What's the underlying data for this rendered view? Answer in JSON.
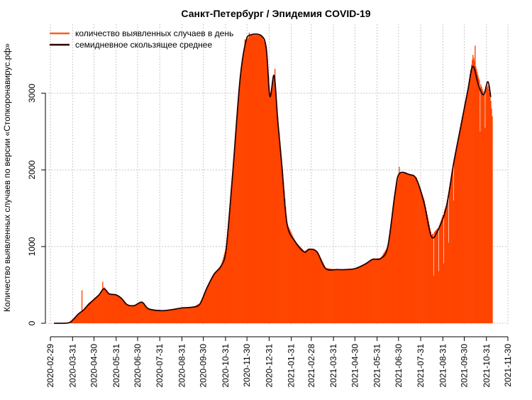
{
  "chart_data": {
    "type": "bar",
    "title": "Санкт-Петербург / Эпидемия COVID-19",
    "xlabel": "",
    "ylabel": "Количество выявленных случаев по версии «Стопкоронавирус.рф»",
    "x_range": [
      "2020-02-22",
      "2021-11-30"
    ],
    "ylim": [
      0,
      3900
    ],
    "y_ticks": [
      0,
      1000,
      2000,
      3000
    ],
    "x_ticks": [
      "2020-02-29",
      "2020-03-31",
      "2020-04-30",
      "2020-05-31",
      "2020-06-30",
      "2020-07-31",
      "2020-08-31",
      "2020-09-30",
      "2020-10-31",
      "2020-11-30",
      "2020-12-31",
      "2021-01-31",
      "2021-02-28",
      "2021-03-31",
      "2021-04-30",
      "2021-05-31",
      "2021-06-30",
      "2021-07-31",
      "2021-08-31",
      "2021-09-30",
      "2021-10-31",
      "2021-11-30"
    ],
    "grid": true,
    "legend_position": "top-left",
    "colors": {
      "daily": "#ff4500",
      "daily_legend": "#f26522",
      "average": "#2a0000"
    },
    "series": [
      {
        "name": "количество выявленных случаев в день",
        "kind": "daily",
        "anchors": [
          [
            "2020-03-05",
            0
          ],
          [
            "2020-03-25",
            5
          ],
          [
            "2020-04-01",
            60
          ],
          [
            "2020-04-08",
            130
          ],
          [
            "2020-04-15",
            180
          ],
          [
            "2020-04-22",
            260
          ],
          [
            "2020-04-30",
            320
          ],
          [
            "2020-05-07",
            380
          ],
          [
            "2020-05-14",
            470
          ],
          [
            "2020-05-21",
            390
          ],
          [
            "2020-05-31",
            370
          ],
          [
            "2020-06-08",
            320
          ],
          [
            "2020-06-15",
            240
          ],
          [
            "2020-06-25",
            230
          ],
          [
            "2020-07-06",
            280
          ],
          [
            "2020-07-15",
            190
          ],
          [
            "2020-07-31",
            165
          ],
          [
            "2020-08-15",
            175
          ],
          [
            "2020-08-31",
            200
          ],
          [
            "2020-09-15",
            210
          ],
          [
            "2020-09-25",
            260
          ],
          [
            "2020-10-05",
            470
          ],
          [
            "2020-10-15",
            650
          ],
          [
            "2020-10-25",
            760
          ],
          [
            "2020-11-01",
            1000
          ],
          [
            "2020-11-10",
            2000
          ],
          [
            "2020-11-20",
            3200
          ],
          [
            "2020-11-28",
            3680
          ],
          [
            "2020-12-05",
            3760
          ],
          [
            "2020-12-20",
            3760
          ],
          [
            "2020-12-27",
            3600
          ],
          [
            "2021-01-01",
            2970
          ],
          [
            "2021-01-07",
            3220
          ],
          [
            "2021-01-12",
            2700
          ],
          [
            "2021-01-18",
            2050
          ],
          [
            "2021-01-25",
            1300
          ],
          [
            "2021-02-05",
            1070
          ],
          [
            "2021-02-18",
            940
          ],
          [
            "2021-02-25",
            970
          ],
          [
            "2021-03-08",
            940
          ],
          [
            "2021-03-20",
            720
          ],
          [
            "2021-04-05",
            700
          ],
          [
            "2021-04-18",
            700
          ],
          [
            "2021-05-01",
            720
          ],
          [
            "2021-05-15",
            780
          ],
          [
            "2021-05-25",
            840
          ],
          [
            "2021-06-05",
            850
          ],
          [
            "2021-06-15",
            1000
          ],
          [
            "2021-06-25",
            1700
          ],
          [
            "2021-07-01",
            1960
          ],
          [
            "2021-07-15",
            1950
          ],
          [
            "2021-07-25",
            1900
          ],
          [
            "2021-08-05",
            1600
          ],
          [
            "2021-08-15",
            1150
          ],
          [
            "2021-08-25",
            1250
          ],
          [
            "2021-09-05",
            1550
          ],
          [
            "2021-09-15",
            2100
          ],
          [
            "2021-09-25",
            2600
          ],
          [
            "2021-10-05",
            3050
          ],
          [
            "2021-10-12",
            3500
          ],
          [
            "2021-10-20",
            3200
          ],
          [
            "2021-10-27",
            3000
          ],
          [
            "2021-11-02",
            3100
          ],
          [
            "2021-11-06",
            2900
          ],
          [
            "2021-11-08",
            2700
          ]
        ],
        "spikes": [
          [
            "2020-04-13",
            430
          ],
          [
            "2020-05-12",
            540
          ],
          [
            "2020-11-27",
            3700
          ],
          [
            "2020-12-03",
            3790
          ],
          [
            "2021-01-08",
            3320
          ],
          [
            "2021-01-13",
            2530
          ],
          [
            "2021-07-01",
            2040
          ],
          [
            "2021-10-15",
            3620
          ],
          [
            "2021-10-22",
            3450
          ]
        ],
        "dips": [
          [
            "2021-08-18",
            620
          ],
          [
            "2021-08-25",
            680
          ],
          [
            "2021-09-01",
            780
          ],
          [
            "2021-09-08",
            1050
          ],
          [
            "2021-09-15",
            1600
          ],
          [
            "2021-10-22",
            2500
          ],
          [
            "2021-10-29",
            2550
          ]
        ]
      },
      {
        "name": "семидневное скользящее среднее",
        "kind": "average",
        "points": [
          [
            "2020-03-05",
            0
          ],
          [
            "2020-03-25",
            5
          ],
          [
            "2020-04-01",
            50
          ],
          [
            "2020-04-08",
            120
          ],
          [
            "2020-04-15",
            170
          ],
          [
            "2020-04-22",
            240
          ],
          [
            "2020-04-30",
            310
          ],
          [
            "2020-05-07",
            370
          ],
          [
            "2020-05-14",
            450
          ],
          [
            "2020-05-21",
            385
          ],
          [
            "2020-05-31",
            370
          ],
          [
            "2020-06-08",
            320
          ],
          [
            "2020-06-15",
            245
          ],
          [
            "2020-06-25",
            230
          ],
          [
            "2020-07-06",
            275
          ],
          [
            "2020-07-15",
            190
          ],
          [
            "2020-07-31",
            165
          ],
          [
            "2020-08-15",
            175
          ],
          [
            "2020-08-31",
            200
          ],
          [
            "2020-09-15",
            210
          ],
          [
            "2020-09-25",
            250
          ],
          [
            "2020-10-05",
            460
          ],
          [
            "2020-10-15",
            640
          ],
          [
            "2020-10-25",
            750
          ],
          [
            "2020-11-01",
            980
          ],
          [
            "2020-11-10",
            1950
          ],
          [
            "2020-11-20",
            3150
          ],
          [
            "2020-11-28",
            3660
          ],
          [
            "2020-12-05",
            3760
          ],
          [
            "2020-12-20",
            3750
          ],
          [
            "2020-12-27",
            3580
          ],
          [
            "2021-01-01",
            2960
          ],
          [
            "2021-01-07",
            3230
          ],
          [
            "2021-01-12",
            2650
          ],
          [
            "2021-01-18",
            2030
          ],
          [
            "2021-01-25",
            1300
          ],
          [
            "2021-02-05",
            1070
          ],
          [
            "2021-02-18",
            930
          ],
          [
            "2021-02-25",
            965
          ],
          [
            "2021-03-08",
            930
          ],
          [
            "2021-03-20",
            715
          ],
          [
            "2021-04-05",
            700
          ],
          [
            "2021-04-18",
            700
          ],
          [
            "2021-05-01",
            715
          ],
          [
            "2021-05-15",
            775
          ],
          [
            "2021-05-25",
            835
          ],
          [
            "2021-06-05",
            845
          ],
          [
            "2021-06-15",
            1000
          ],
          [
            "2021-06-25",
            1690
          ],
          [
            "2021-07-01",
            1950
          ],
          [
            "2021-07-15",
            1940
          ],
          [
            "2021-07-25",
            1880
          ],
          [
            "2021-08-05",
            1560
          ],
          [
            "2021-08-15",
            1130
          ],
          [
            "2021-08-25",
            1230
          ],
          [
            "2021-09-05",
            1520
          ],
          [
            "2021-09-15",
            2080
          ],
          [
            "2021-09-25",
            2560
          ],
          [
            "2021-10-05",
            3040
          ],
          [
            "2021-10-12",
            3350
          ],
          [
            "2021-10-20",
            3100
          ],
          [
            "2021-10-27",
            2980
          ],
          [
            "2021-11-02",
            3150
          ],
          [
            "2021-11-06",
            2950
          ]
        ]
      }
    ]
  }
}
